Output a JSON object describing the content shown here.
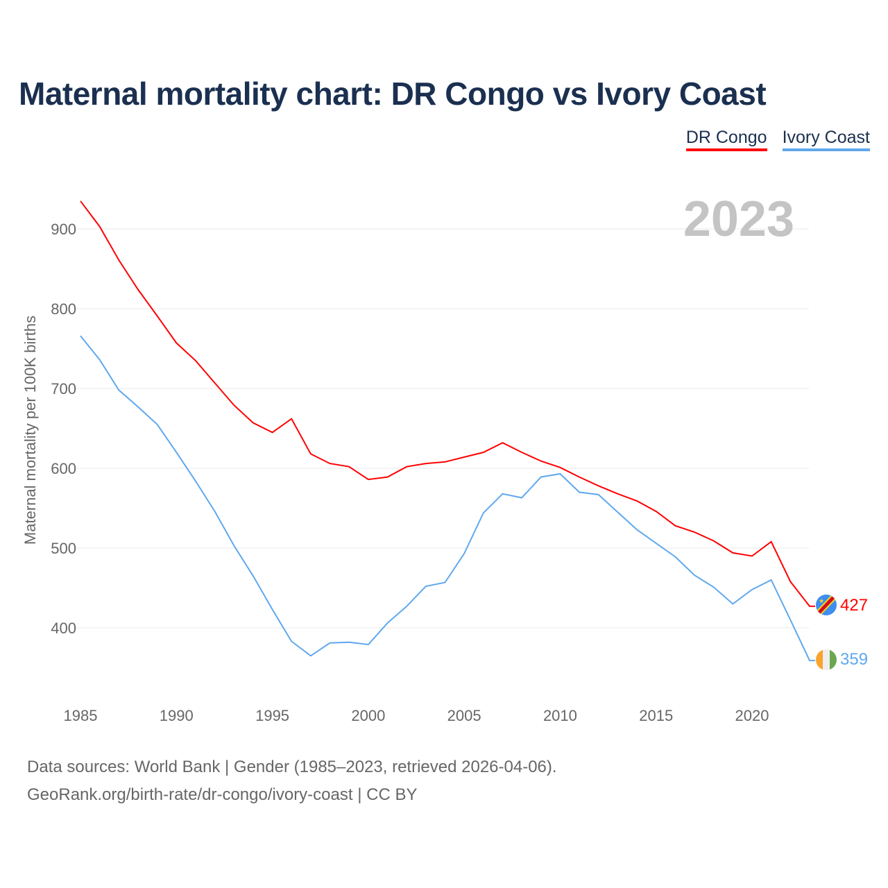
{
  "title": "Maternal mortality chart: DR Congo vs Ivory Coast",
  "footer": {
    "line1": "Data sources: World Bank | Gender (1985–2023, retrieved 2026-04-06).",
    "line2": "GeoRank.org/birth-rate/dr-congo/ivory-coast | CC BY"
  },
  "chart_data": {
    "type": "line",
    "title": "Maternal mortality chart: DR Congo vs Ivory Coast",
    "year_label": "2023",
    "xlabel": "",
    "ylabel": "Maternal mortality per 100K births",
    "xlim": [
      1985,
      2023
    ],
    "ylim": [
      330,
      960
    ],
    "xticks": [
      1985,
      1990,
      1995,
      2000,
      2005,
      2010,
      2015,
      2020
    ],
    "yticks": [
      400,
      500,
      600,
      700,
      800,
      900
    ],
    "grid": true,
    "legend_position": "top-right",
    "x": [
      1985,
      1986,
      1987,
      1988,
      1989,
      1990,
      1991,
      1992,
      1993,
      1994,
      1995,
      1996,
      1997,
      1998,
      1999,
      2000,
      2001,
      2002,
      2003,
      2004,
      2005,
      2006,
      2007,
      2008,
      2009,
      2010,
      2011,
      2012,
      2013,
      2014,
      2015,
      2016,
      2017,
      2018,
      2019,
      2020,
      2021,
      2022,
      2023
    ],
    "series": [
      {
        "name": "DR Congo",
        "color": "#ff0000",
        "end_label": "427",
        "values": [
          935,
          903,
          861,
          824,
          791,
          757,
          735,
          707,
          679,
          657,
          645,
          662,
          618,
          606,
          602,
          586,
          589,
          602,
          606,
          608,
          614,
          620,
          632,
          620,
          609,
          601,
          589,
          578,
          568,
          559,
          546,
          528,
          520,
          509,
          494,
          490,
          508,
          458,
          427
        ]
      },
      {
        "name": "Ivory Coast",
        "color": "#5ea8ee",
        "end_label": "359",
        "values": [
          766,
          736,
          698,
          677,
          655,
          620,
          584,
          546,
          503,
          465,
          423,
          383,
          365,
          381,
          382,
          379,
          406,
          427,
          452,
          457,
          493,
          544,
          568,
          563,
          589,
          593,
          570,
          567,
          545,
          523,
          506,
          489,
          466,
          451,
          430,
          448,
          460,
          410,
          359
        ]
      }
    ]
  }
}
